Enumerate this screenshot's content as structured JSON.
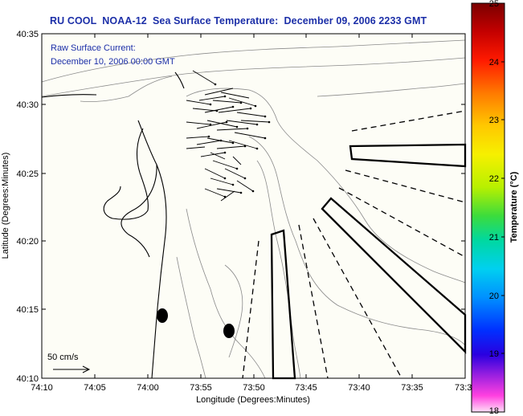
{
  "title": "RU COOL  NOAA-12  Sea Surface Temperature:  December 09, 2006 2233 GMT",
  "current": {
    "label": "Raw Surface Current:",
    "time": "December 10, 2006 00:00 GMT"
  },
  "scale_label": "50 cm/s",
  "axes": {
    "xlabel": "Longitude (Degrees:Minutes)",
    "ylabel": "Latitude (Degrees:Minutes)",
    "x_ticks": [
      "74:10",
      "74:05",
      "74:00",
      "73:55",
      "73:50",
      "73:45",
      "73:40",
      "73:35",
      "73:3"
    ],
    "y_ticks": [
      "40:35",
      "40:30",
      "40:25",
      "40:20",
      "40:15",
      "40:10"
    ]
  },
  "colorbar": {
    "label": "Temperature (°C)",
    "ticks": [
      "25",
      "24",
      "23",
      "22",
      "21",
      "20",
      "19",
      "18"
    ],
    "min": 18,
    "max": 25
  },
  "colors": {
    "title": "#1c2fa8",
    "land": "#fbfbf5",
    "ocean_bg": "#fdfdf6"
  }
}
